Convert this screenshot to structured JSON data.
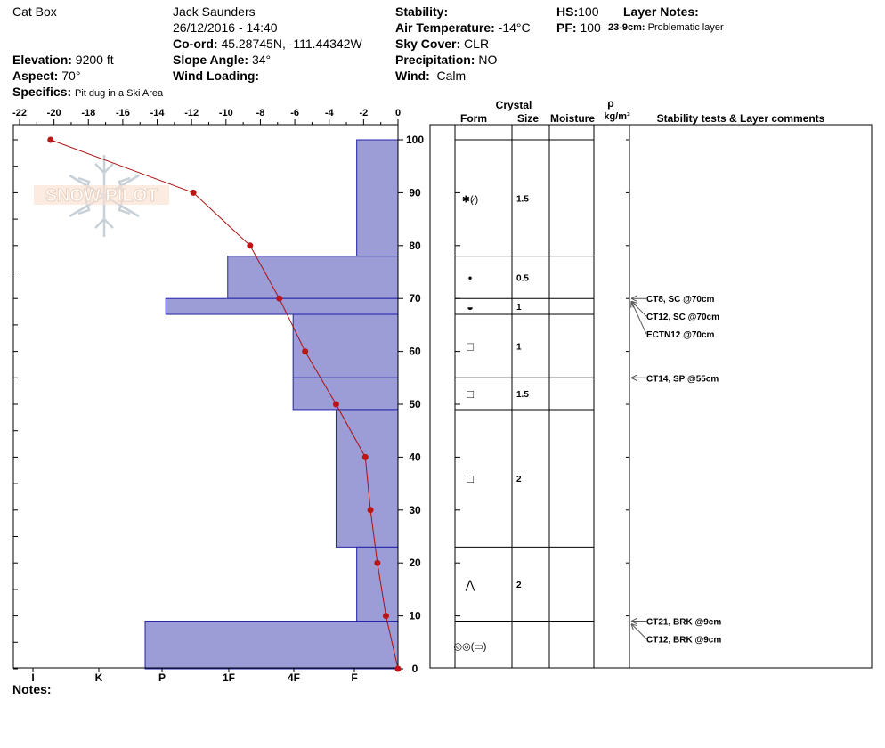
{
  "header": {
    "site": "Cat Box",
    "observer": "Jack Saunders",
    "datetime": "26/12/2016 - 14:40",
    "coord_label": "Co-ord:",
    "coord_value": "45.28745N, -111.44342W",
    "elevation_label": "Elevation:",
    "elevation_value": "9200 ft",
    "aspect_label": "Aspect:",
    "aspect_value": "70°",
    "specifics_label": "Specifics:",
    "specifics_value": "Pit dug in a Ski Area",
    "slope_label": "Slope Angle:",
    "slope_value": "34°",
    "wind_loading_label": "Wind Loading:",
    "stability_label": "Stability:",
    "air_temp_label": "Air Temperature:",
    "air_temp_value": "-14°C",
    "sky_label": "Sky Cover:",
    "sky_value": "CLR",
    "precip_label": "Precipitation:",
    "precip_value": "NO",
    "wind_label": "Wind:",
    "wind_value": "Calm",
    "hs_label": "HS:",
    "hs_value": "100",
    "pf_label": "PF:",
    "pf_value": "100",
    "layer_notes_label": "Layer Notes:",
    "layer_note_depth": "23-9cm:",
    "layer_note_text": "Problematic layer",
    "notes_label": "Notes:",
    "watermark": "SNOW PILOT"
  },
  "table_headers": {
    "crystal": "Crystal",
    "form": "Form",
    "size": "Size",
    "moisture": "Moisture",
    "rho": "ρ",
    "density_unit": "kg/m³",
    "stability": "Stability tests & Layer comments"
  },
  "chart_data": {
    "type": "line",
    "temperature_axis": {
      "ticks": [
        -22,
        -20,
        -18,
        -16,
        -14,
        -12,
        -10,
        -8,
        -6,
        -4,
        -2,
        0
      ],
      "range": [
        -22,
        0
      ]
    },
    "height_axis": {
      "ticks": [
        0,
        10,
        20,
        30,
        40,
        50,
        60,
        70,
        80,
        90,
        100
      ],
      "range": [
        0,
        100
      ]
    },
    "hardness_labels": [
      "I",
      "K",
      "P",
      "1F",
      "4F",
      "F"
    ],
    "temperature_profile": [
      {
        "height": 100,
        "temp": -20.2
      },
      {
        "height": 90,
        "temp": -11.9
      },
      {
        "height": 80,
        "temp": -8.6
      },
      {
        "height": 70,
        "temp": -6.9
      },
      {
        "height": 60,
        "temp": -5.4
      },
      {
        "height": 50,
        "temp": -3.6
      },
      {
        "height": 40,
        "temp": -1.9
      },
      {
        "height": 30,
        "temp": -1.6
      },
      {
        "height": 20,
        "temp": -1.2
      },
      {
        "height": 10,
        "temp": -0.7
      },
      {
        "height": 0,
        "temp": 0
      }
    ],
    "hardness_layers": [
      {
        "top": 100,
        "bottom": 78,
        "temp_extent": -2.4
      },
      {
        "top": 78,
        "bottom": 70,
        "temp_extent": -9.9
      },
      {
        "top": 70,
        "bottom": 67,
        "temp_extent": -13.5
      },
      {
        "top": 67,
        "bottom": 55,
        "temp_extent": -6.1
      },
      {
        "top": 55,
        "bottom": 49,
        "temp_extent": -6.1
      },
      {
        "top": 49,
        "bottom": 23,
        "temp_extent": -3.6
      },
      {
        "top": 23,
        "bottom": 9,
        "temp_extent": -2.4
      },
      {
        "top": 9,
        "bottom": 0,
        "temp_extent": -14.7
      }
    ],
    "layers": [
      {
        "top": 100,
        "bottom": 78,
        "form": "✱(⁄)",
        "size": "1.5",
        "mid": 89
      },
      {
        "top": 78,
        "bottom": 70,
        "form": "•",
        "size": "0.5",
        "mid": 74
      },
      {
        "top": 70,
        "bottom": 67,
        "form": "◒",
        "size": "1",
        "mid": 68.5
      },
      {
        "top": 67,
        "bottom": 55,
        "form": "□",
        "size": "1",
        "mid": 61
      },
      {
        "top": 55,
        "bottom": 49,
        "form": "□",
        "size": "1.5",
        "mid": 52
      },
      {
        "top": 49,
        "bottom": 23,
        "form": "□",
        "size": "2",
        "mid": 36
      },
      {
        "top": 23,
        "bottom": 9,
        "form": "⋀",
        "size": "2",
        "mid": 16
      },
      {
        "top": 9,
        "bottom": 0,
        "form": "◎◎(▭)",
        "size": "",
        "mid": 4.5
      }
    ],
    "stability_tests": [
      {
        "height": 70,
        "label": "CT8, SC @70cm",
        "text_y_offset": 0
      },
      {
        "height": 70,
        "label": "CT12, SC @70cm",
        "text_y_offset": 20
      },
      {
        "height": 70,
        "label": "ECTN12 @70cm",
        "text_y_offset": 40
      },
      {
        "height": 55,
        "label": "CT14, SP @55cm",
        "text_y_offset": 0
      },
      {
        "height": 9,
        "label": "CT21, BRK @9cm",
        "text_y_offset": 0
      },
      {
        "height": 9,
        "label": "CT12, BRK @9cm",
        "text_y_offset": 20
      }
    ]
  }
}
